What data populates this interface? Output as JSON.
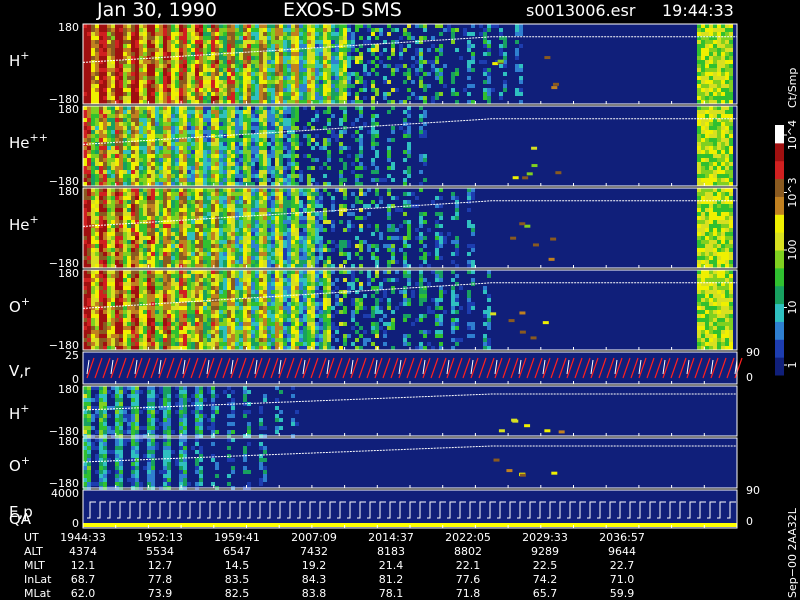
{
  "header": {
    "date": "Jan 30, 1990",
    "instrument": "EXOS-D SMS",
    "file": "s0013006.esr",
    "time": "19:44:33"
  },
  "colors": {
    "background": "#000000",
    "panel_fill": "#101f7a",
    "trace": "#ffffff",
    "vr_trace": "#ff2020",
    "qa_bar": "#ffff00"
  },
  "colorbar": {
    "label": "Ct/Smp",
    "ticks": [
      "1",
      "10",
      "100",
      "10^3",
      "10^4"
    ],
    "stops": [
      "#101f7a",
      "#1d3db0",
      "#2f7fd0",
      "#2fc0c0",
      "#18a060",
      "#30c030",
      "#80d020",
      "#d8e020",
      "#f0f000",
      "#c08020",
      "#8a5a20",
      "#d02020",
      "#a01010",
      "#ffffff"
    ]
  },
  "panels": [
    {
      "label": "H",
      "sup": "+",
      "ytop": "180",
      "ybot": "−180",
      "kind": "spec",
      "activity": 1.0
    },
    {
      "label": "He",
      "sup": "++",
      "ytop": "180",
      "ybot": "−180",
      "kind": "spec",
      "activity": 0.7
    },
    {
      "label": "He",
      "sup": "+",
      "ytop": "180",
      "ybot": "−180",
      "kind": "spec",
      "activity": 0.85
    },
    {
      "label": "O",
      "sup": "+",
      "ytop": "180",
      "ybot": "−180",
      "kind": "spec",
      "activity": 0.9
    },
    {
      "label": "V,r",
      "sup": "",
      "ytop": "25",
      "ybot": "0",
      "kind": "line",
      "right_top": "90",
      "right_bot": "0"
    },
    {
      "label": "H",
      "sup": "+",
      "ytop": "180",
      "ybot": "−180",
      "kind": "spec",
      "activity": 0.25
    },
    {
      "label": "O",
      "sup": "+",
      "ytop": "180",
      "ybot": "−180",
      "kind": "spec",
      "activity": 0.15
    },
    {
      "label": "E,p",
      "label2": "QA",
      "sup": "",
      "ytop": "4000",
      "ybot": "0",
      "kind": "step",
      "right_top": "90",
      "right_bot": "0"
    }
  ],
  "ephemeris": {
    "rows": [
      {
        "name": "UT",
        "values": [
          "1944:33",
          "1952:13",
          "1959:41",
          "2007:09",
          "2014:37",
          "2022:05",
          "2029:33",
          "2036:57"
        ]
      },
      {
        "name": "ALT",
        "values": [
          "4374",
          "5534",
          "6547",
          "7432",
          "8183",
          "8802",
          "9289",
          "9644"
        ]
      },
      {
        "name": "MLT",
        "values": [
          "12.1",
          "12.7",
          "14.5",
          "19.2",
          "21.4",
          "22.1",
          "22.5",
          "22.7"
        ]
      },
      {
        "name": "InLat",
        "values": [
          "68.7",
          "77.8",
          "83.5",
          "84.3",
          "81.2",
          "77.6",
          "74.2",
          "71.0"
        ]
      },
      {
        "name": "MLat",
        "values": [
          "62.0",
          "73.9",
          "82.5",
          "83.8",
          "78.1",
          "71.8",
          "65.7",
          "59.9"
        ]
      }
    ]
  },
  "side_note": "Sep−00  2AA32L",
  "chart_data": {
    "type": "heatmap",
    "title": "Jan 30, 1990   EXOS-D SMS",
    "subtitle": "s0013006.esr  19:44:33",
    "x_ticks": [
      "1944:33",
      "1952:13",
      "1959:41",
      "2007:09",
      "2014:37",
      "2022:05",
      "2029:33",
      "2036:57"
    ],
    "series": [
      {
        "name": "H+",
        "ylim": [
          -180,
          180
        ]
      },
      {
        "name": "He++",
        "ylim": [
          -180,
          180
        ]
      },
      {
        "name": "He+",
        "ylim": [
          -180,
          180
        ]
      },
      {
        "name": "O+",
        "ylim": [
          -180,
          180
        ]
      },
      {
        "name": "V,r",
        "ylim": [
          0,
          25
        ]
      },
      {
        "name": "H+",
        "ylim": [
          -180,
          180
        ]
      },
      {
        "name": "O+",
        "ylim": [
          -180,
          180
        ]
      },
      {
        "name": "E,p",
        "ylim": [
          0,
          4000
        ]
      }
    ],
    "colorbar_label": "Ct/Smp"
  }
}
